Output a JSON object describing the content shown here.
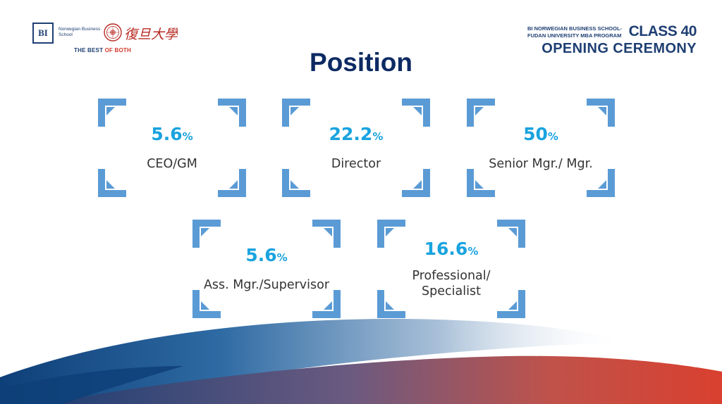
{
  "header": {
    "bi_mark": "BI",
    "bi_name": "Norwegian Business School",
    "fudan_glyphs": "復旦大學",
    "tagline_main": "THE BEST ",
    "tagline_accent": "OF BOTH",
    "program_line1": "BI NORWEGIAN BUSINESS SCHOOL-",
    "program_line2": "FUDAN UNIVERSITY MBA PROGRAM",
    "class_label": "CLASS 40",
    "event_label": "OPENING CEREMONY"
  },
  "title": "Position",
  "colors": {
    "accent": "#1aa3df",
    "frame": "#5b9bd5",
    "navy": "#0d2a63",
    "red": "#d33a2c"
  },
  "cards": [
    {
      "value": "5.6",
      "unit": "%",
      "label": "CEO/GM"
    },
    {
      "value": "22.2",
      "unit": "%",
      "label": "Director"
    },
    {
      "value": "50",
      "unit": "%",
      "label": "Senior Mgr./ Mgr."
    },
    {
      "value": "5.6",
      "unit": "%",
      "label": "Ass. Mgr./Supervisor"
    },
    {
      "value": "16.6",
      "unit": "%",
      "label": "Professional/\nSpecialist"
    }
  ]
}
